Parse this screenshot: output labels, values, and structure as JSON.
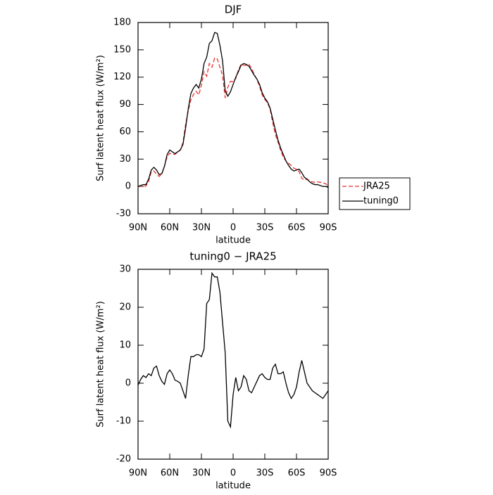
{
  "chart_data": [
    {
      "type": "line",
      "title": "DJF",
      "x_label": "latitude",
      "y_label": "Surf latent heat flux (W/m²)",
      "x": [
        90,
        87.5,
        85,
        82.5,
        80,
        77.5,
        75,
        72.5,
        70,
        67.5,
        65,
        62.5,
        60,
        57.5,
        55,
        52.5,
        50,
        47.5,
        45,
        42.5,
        40,
        37.5,
        35,
        32.5,
        30,
        27.5,
        25,
        22.5,
        20,
        17.5,
        15,
        12.5,
        10,
        7.5,
        5,
        2.5,
        0,
        -2.5,
        -5,
        -7.5,
        -10,
        -12.5,
        -15,
        -17.5,
        -20,
        -22.5,
        -25,
        -27.5,
        -30,
        -32.5,
        -35,
        -37.5,
        -40,
        -42.5,
        -45,
        -47.5,
        -50,
        -52.5,
        -55,
        -57.5,
        -60,
        -62.5,
        -65,
        -67.5,
        -70,
        -72.5,
        -75,
        -77.5,
        -80,
        -82.5,
        -85,
        -87.5,
        -90
      ],
      "series": [
        {
          "name": "JRA25",
          "color": "#e8312f",
          "linestyle": "dashed",
          "values": [
            0.5,
            0,
            0,
            0.5,
            5.5,
            16,
            17,
            13.5,
            11,
            13.5,
            22.3,
            32.5,
            36.5,
            35.5,
            35.2,
            37.5,
            40,
            48,
            68,
            83,
            95,
            101,
            104.5,
            100.5,
            111,
            126,
            121,
            135,
            131,
            141,
            140,
            131,
            122,
            97,
            109,
            115.5,
            115,
            118.5,
            128,
            134,
            133,
            133,
            134,
            129.5,
            123,
            117.5,
            110,
            100.5,
            95.5,
            92,
            85,
            70,
            57,
            48.5,
            39.5,
            32,
            28,
            25.5,
            23,
            20,
            19,
            16,
            9,
            7,
            8,
            6,
            5,
            4.5,
            5,
            4.5,
            4,
            3,
            1
          ]
        },
        {
          "name": "tuning0",
          "color": "#000000",
          "linestyle": "solid",
          "values": [
            0,
            1,
            2,
            2,
            8,
            18,
            21,
            18,
            13,
            14,
            22,
            35,
            40,
            38,
            36,
            38,
            40,
            46,
            64,
            85,
            102,
            108,
            112,
            108,
            118,
            135,
            142,
            157,
            160,
            169,
            168,
            155,
            138,
            105,
            99,
            104,
            112,
            120,
            126,
            133,
            135,
            134,
            132,
            127,
            122,
            118,
            112,
            103,
            97,
            93,
            86,
            74,
            62,
            51,
            42,
            35,
            28,
            23,
            19,
            17,
            18,
            19,
            15,
            10,
            8,
            5,
            3,
            2,
            2,
            1,
            0,
            0,
            -1
          ]
        }
      ],
      "xlim": [
        90,
        -90
      ],
      "xticks": [
        {
          "value": 90,
          "label": "90N"
        },
        {
          "value": 60,
          "label": "60N"
        },
        {
          "value": 30,
          "label": "30N"
        },
        0,
        {
          "value": -30,
          "label": "30S"
        },
        {
          "value": -60,
          "label": "60S"
        },
        {
          "value": -90,
          "label": "90S"
        }
      ],
      "ylim": [
        -30,
        180
      ],
      "yticks": [
        -30,
        0,
        30,
        60,
        90,
        120,
        150,
        180
      ],
      "legend": "right"
    },
    {
      "type": "line",
      "title": "tuning0 − JRA25",
      "x_label": "latitude",
      "y_label": "Surf latent heat flux (W/m²)",
      "x": [
        90,
        87.5,
        85,
        82.5,
        80,
        77.5,
        75,
        72.5,
        70,
        67.5,
        65,
        62.5,
        60,
        57.5,
        55,
        52.5,
        50,
        47.5,
        45,
        42.5,
        40,
        37.5,
        35,
        32.5,
        30,
        27.5,
        25,
        22.5,
        20,
        17.5,
        15,
        12.5,
        10,
        7.5,
        5,
        2.5,
        0,
        -2.5,
        -5,
        -7.5,
        -10,
        -12.5,
        -15,
        -17.5,
        -20,
        -22.5,
        -25,
        -27.5,
        -30,
        -32.5,
        -35,
        -37.5,
        -40,
        -42.5,
        -45,
        -47.5,
        -50,
        -52.5,
        -55,
        -57.5,
        -60,
        -62.5,
        -65,
        -67.5,
        -70,
        -72.5,
        -75,
        -77.5,
        -80,
        -82.5,
        -85,
        -87.5,
        -90
      ],
      "series": [
        {
          "color": "#000000",
          "linestyle": "solid",
          "values": [
            -0.5,
            1,
            2,
            1.5,
            2.5,
            2,
            4,
            4.5,
            2,
            0.5,
            -0.3,
            2.5,
            3.5,
            2.5,
            0.8,
            0.5,
            0,
            -2,
            -4,
            2,
            7,
            7,
            7.5,
            7.5,
            7,
            9,
            21,
            22,
            29,
            28,
            28,
            24,
            16,
            8,
            -10,
            -11.5,
            -3,
            1.5,
            -2,
            -1,
            2,
            1,
            -2,
            -2.5,
            -1,
            0.5,
            2,
            2.5,
            1.5,
            1,
            1,
            4,
            5,
            2.5,
            2.5,
            3,
            0,
            -2.5,
            -4,
            -3,
            -1,
            3,
            6,
            3,
            0,
            -1,
            -2,
            -2.5,
            -3,
            -3.5,
            -4,
            -3,
            -2
          ]
        }
      ],
      "xlim": [
        90,
        -90
      ],
      "xticks": [
        {
          "value": 90,
          "label": "90N"
        },
        {
          "value": 60,
          "label": "60N"
        },
        {
          "value": 30,
          "label": "30N"
        },
        0,
        {
          "value": -30,
          "label": "30S"
        },
        {
          "value": -60,
          "label": "60S"
        },
        {
          "value": -90,
          "label": "90S"
        }
      ],
      "ylim": [
        -20,
        30
      ],
      "yticks": [
        -20,
        -10,
        0,
        10,
        20,
        30
      ]
    }
  ]
}
